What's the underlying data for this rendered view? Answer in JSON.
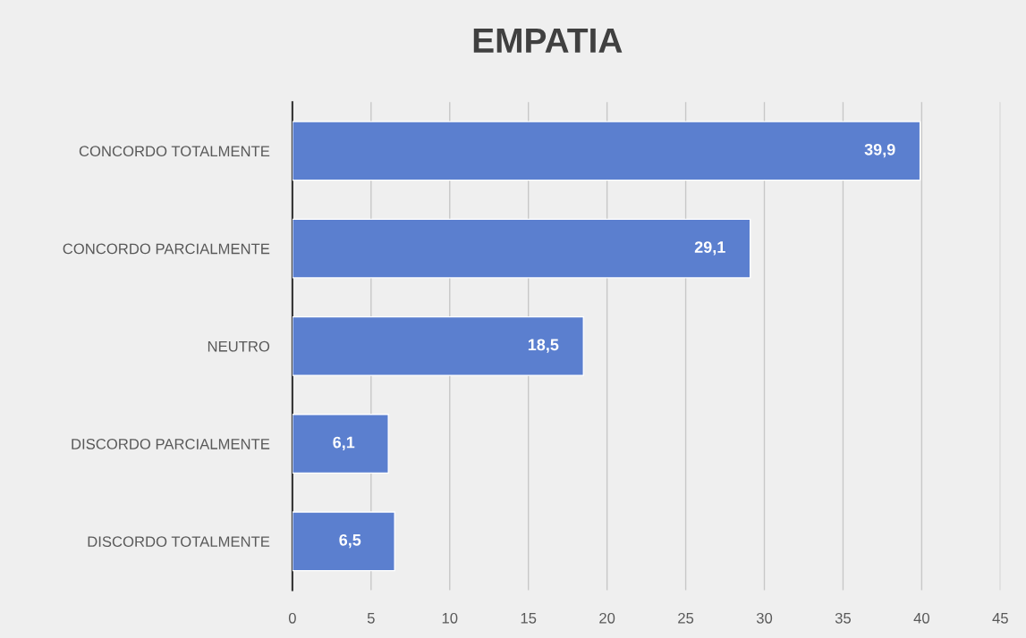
{
  "chart_data": {
    "type": "bar",
    "orientation": "horizontal",
    "title": "EMPATIA",
    "categories": [
      "CONCORDO TOTALMENTE",
      "CONCORDO PARCIALMENTE",
      "NEUTRO",
      "DISCORDO PARCIALMENTE",
      "DISCORDO TOTALMENTE"
    ],
    "values": [
      39.9,
      29.1,
      18.5,
      6.1,
      6.5
    ],
    "value_labels": [
      "39,9",
      "29,1",
      "18,5",
      "6,1",
      "6,5"
    ],
    "color": "#5b7fcf",
    "xlim": [
      0,
      45
    ],
    "xticks": [
      0,
      5,
      10,
      15,
      20,
      25,
      30,
      35,
      40,
      45
    ],
    "grid": "x"
  }
}
